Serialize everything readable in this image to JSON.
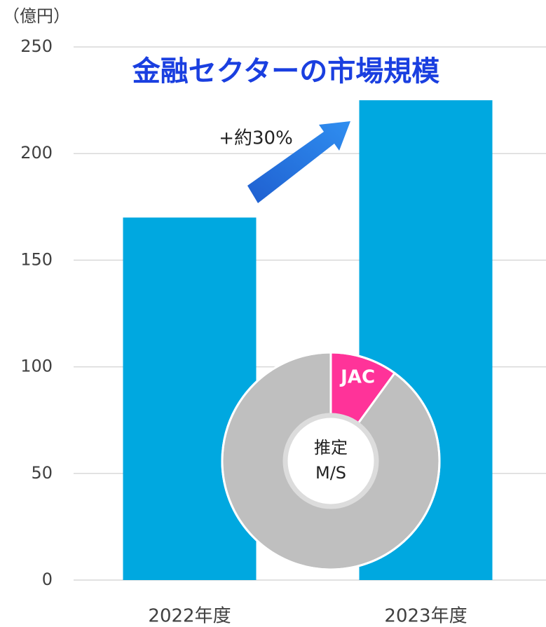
{
  "chart_data": [
    {
      "type": "bar",
      "title": "金融セクターの市場規模",
      "y_label": "（億円）",
      "categories": [
        "2022年度",
        "2023年度"
      ],
      "values": [
        170,
        225
      ],
      "color": "#00a8e0",
      "ylim": [
        0,
        250
      ],
      "yticks": [
        0,
        50,
        100,
        150,
        200,
        250
      ],
      "grid": true,
      "annotation": "+約30%"
    },
    {
      "type": "pie",
      "donut": true,
      "categories": [
        "JAC",
        null
      ],
      "values": [
        10,
        90
      ],
      "colors": [
        "#ff3399",
        "#bfbfbf"
      ],
      "center_label": [
        "推定",
        "M/S"
      ]
    }
  ]
}
